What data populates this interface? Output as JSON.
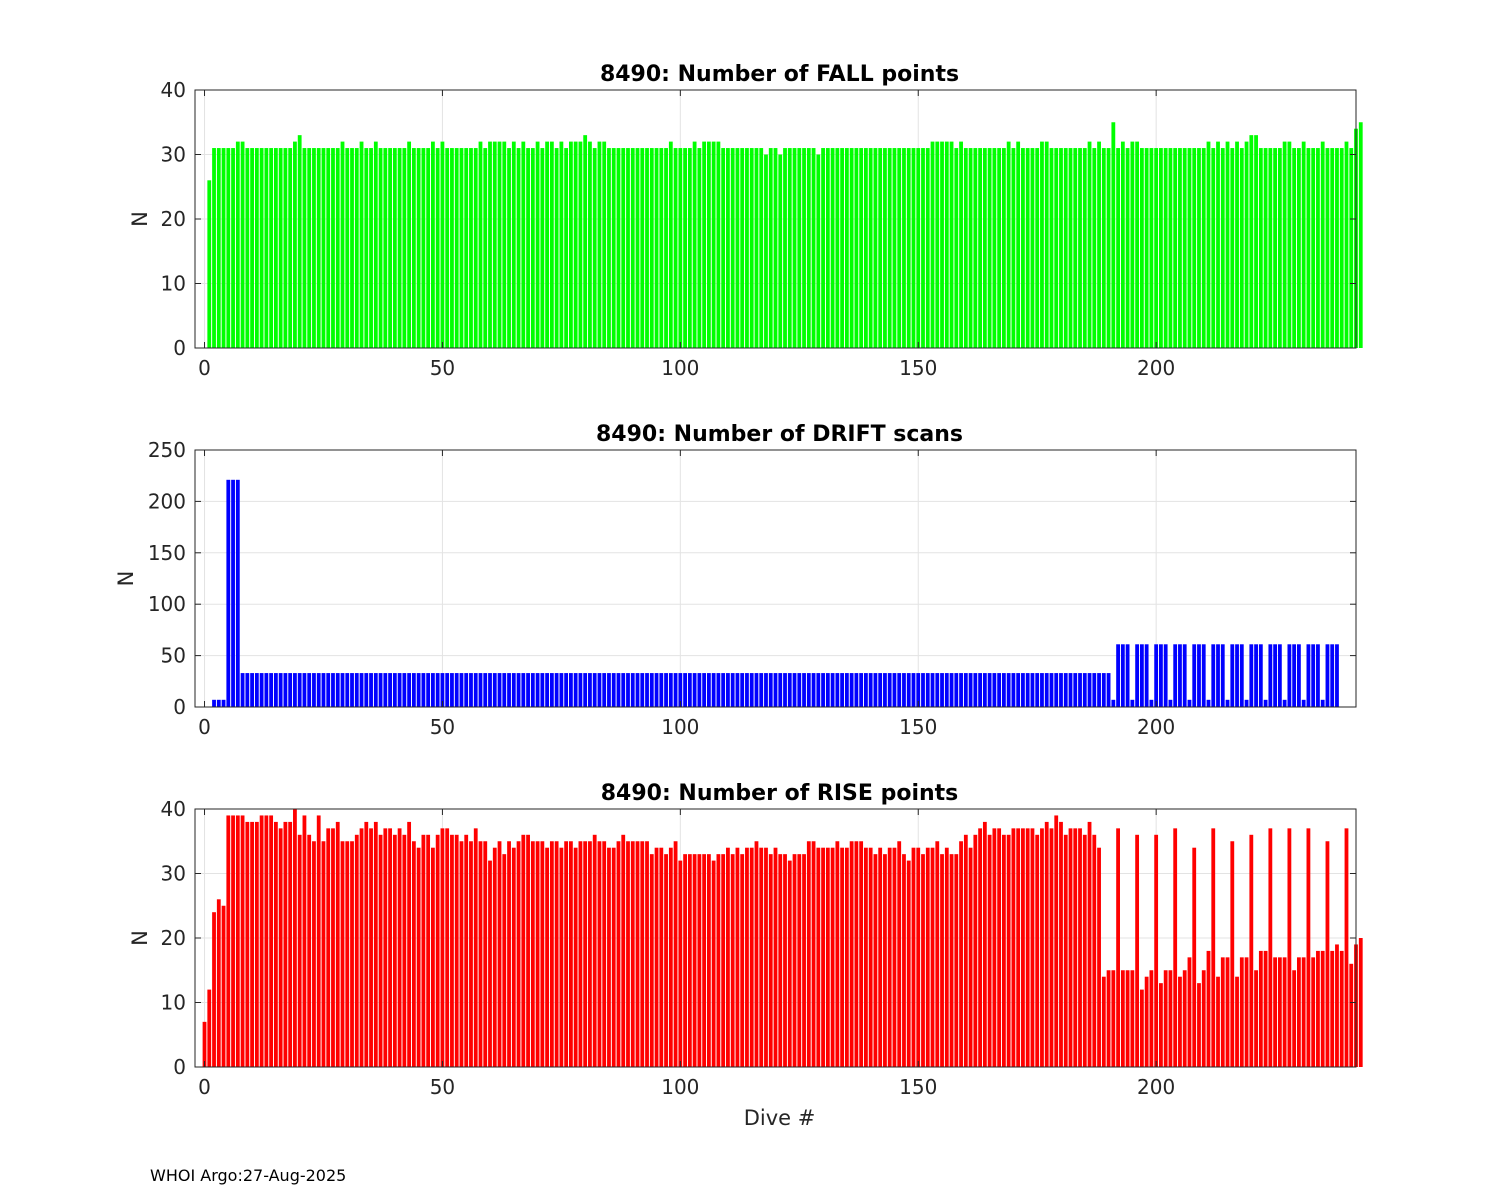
{
  "footer": {
    "source": "WHOI Argo:",
    "date": "27-Aug-2025"
  },
  "chart_data": [
    {
      "type": "bar",
      "title": "8490: Number of FALL points",
      "xlabel": "",
      "ylabel": "N",
      "color": "#00ff00",
      "xlim": [
        -2,
        242
      ],
      "ylim": [
        0,
        40
      ],
      "xticks": [
        0,
        50,
        100,
        150,
        200
      ],
      "yticks": [
        0,
        10,
        20,
        30,
        40
      ],
      "grid": true,
      "x_start": 0,
      "values": [
        0,
        26,
        31,
        31,
        31,
        31,
        31,
        32,
        32,
        31,
        31,
        31,
        31,
        31,
        31,
        31,
        31,
        31,
        31,
        32,
        33,
        31,
        31,
        31,
        31,
        31,
        31,
        31,
        31,
        32,
        31,
        31,
        31,
        32,
        31,
        31,
        32,
        31,
        31,
        31,
        31,
        31,
        31,
        32,
        31,
        31,
        31,
        31,
        32,
        31,
        32,
        31,
        31,
        31,
        31,
        31,
        31,
        31,
        32,
        31,
        32,
        32,
        32,
        32,
        31,
        32,
        31,
        32,
        31,
        31,
        32,
        31,
        32,
        32,
        31,
        32,
        31,
        32,
        32,
        32,
        33,
        32,
        31,
        32,
        32,
        31,
        31,
        31,
        31,
        31,
        31,
        31,
        31,
        31,
        31,
        31,
        31,
        31,
        32,
        31,
        31,
        31,
        31,
        32,
        31,
        32,
        32,
        32,
        32,
        31,
        31,
        31,
        31,
        31,
        31,
        31,
        31,
        31,
        30,
        31,
        31,
        30,
        31,
        31,
        31,
        31,
        31,
        31,
        31,
        30,
        31,
        31,
        31,
        31,
        31,
        31,
        31,
        31,
        31,
        31,
        31,
        31,
        31,
        31,
        31,
        31,
        31,
        31,
        31,
        31,
        31,
        31,
        31,
        32,
        32,
        32,
        32,
        32,
        31,
        32,
        31,
        31,
        31,
        31,
        31,
        31,
        31,
        31,
        31,
        32,
        31,
        32,
        31,
        31,
        31,
        31,
        32,
        32,
        31,
        31,
        31,
        31,
        31,
        31,
        31,
        31,
        32,
        31,
        32,
        31,
        31,
        35,
        31,
        32,
        31,
        32,
        32,
        31,
        31,
        31,
        31,
        31,
        31,
        31,
        31,
        31,
        31,
        31,
        31,
        31,
        31,
        32,
        31,
        32,
        31,
        32,
        31,
        32,
        31,
        32,
        33,
        33,
        31,
        31,
        31,
        31,
        31,
        32,
        32,
        31,
        31,
        32,
        31,
        31,
        31,
        32,
        31,
        31,
        31,
        31,
        32,
        31,
        34,
        35
      ]
    },
    {
      "type": "bar",
      "title": "8490: Number of DRIFT scans",
      "xlabel": "",
      "ylabel": "N",
      "color": "#0000ff",
      "xlim": [
        -2,
        242
      ],
      "ylim": [
        0,
        250
      ],
      "xticks": [
        0,
        50,
        100,
        150,
        200
      ],
      "yticks": [
        0,
        50,
        100,
        150,
        200,
        250
      ],
      "grid": true,
      "x_start": 0,
      "values": [
        0,
        0,
        7,
        7,
        7,
        221,
        221,
        221,
        33,
        33,
        33,
        33,
        33,
        33,
        33,
        33,
        33,
        33,
        33,
        33,
        33,
        33,
        33,
        33,
        33,
        33,
        33,
        33,
        33,
        33,
        33,
        33,
        33,
        33,
        33,
        33,
        33,
        33,
        33,
        33,
        33,
        33,
        33,
        33,
        33,
        33,
        33,
        33,
        33,
        33,
        33,
        33,
        33,
        33,
        33,
        33,
        33,
        33,
        33,
        33,
        33,
        33,
        33,
        33,
        33,
        33,
        33,
        33,
        33,
        33,
        33,
        33,
        33,
        33,
        33,
        33,
        33,
        33,
        33,
        33,
        33,
        33,
        33,
        33,
        33,
        33,
        33,
        33,
        33,
        33,
        33,
        33,
        33,
        33,
        33,
        33,
        33,
        33,
        33,
        33,
        33,
        33,
        33,
        33,
        33,
        33,
        33,
        33,
        33,
        33,
        33,
        33,
        33,
        33,
        33,
        33,
        33,
        33,
        33,
        33,
        33,
        33,
        33,
        33,
        33,
        33,
        33,
        33,
        33,
        33,
        33,
        33,
        33,
        33,
        33,
        33,
        33,
        33,
        33,
        33,
        33,
        33,
        33,
        33,
        33,
        33,
        33,
        33,
        33,
        33,
        33,
        33,
        33,
        33,
        33,
        33,
        33,
        33,
        33,
        33,
        33,
        33,
        33,
        33,
        33,
        33,
        33,
        33,
        33,
        33,
        33,
        33,
        33,
        33,
        33,
        33,
        33,
        33,
        33,
        33,
        33,
        33,
        33,
        33,
        33,
        33,
        33,
        33,
        33,
        33,
        33,
        7,
        61,
        61,
        61,
        7,
        61,
        61,
        61,
        7,
        61,
        61,
        61,
        7,
        61,
        61,
        61,
        7,
        61,
        61,
        61,
        7,
        61,
        61,
        61,
        7,
        61,
        61,
        61,
        7,
        61,
        61,
        61,
        7,
        61,
        61,
        61,
        7,
        61,
        61,
        61,
        7,
        61,
        61,
        61,
        7,
        61,
        61,
        61
      ]
    },
    {
      "type": "bar",
      "title": "8490: Number of RISE points",
      "xlabel": "Dive #",
      "ylabel": "N",
      "color": "#ff0000",
      "xlim": [
        -2,
        242
      ],
      "ylim": [
        0,
        40
      ],
      "xticks": [
        0,
        50,
        100,
        150,
        200
      ],
      "yticks": [
        0,
        10,
        20,
        30,
        40
      ],
      "grid": true,
      "x_start": 0,
      "values": [
        7,
        12,
        24,
        26,
        25,
        39,
        39,
        39,
        39,
        38,
        38,
        38,
        39,
        39,
        39,
        38,
        37,
        38,
        38,
        40,
        36,
        39,
        36,
        35,
        39,
        35,
        37,
        37,
        38,
        35,
        35,
        35,
        36,
        37,
        38,
        37,
        38,
        36,
        37,
        37,
        36,
        37,
        36,
        38,
        35,
        34,
        36,
        36,
        34,
        36,
        37,
        37,
        36,
        36,
        35,
        36,
        35,
        37,
        35,
        35,
        32,
        34,
        35,
        33,
        35,
        34,
        35,
        36,
        36,
        35,
        35,
        35,
        34,
        35,
        35,
        34,
        35,
        35,
        34,
        35,
        35,
        35,
        36,
        35,
        35,
        34,
        34,
        35,
        36,
        35,
        35,
        35,
        35,
        35,
        33,
        34,
        34,
        33,
        34,
        35,
        32,
        33,
        33,
        33,
        33,
        33,
        33,
        32,
        33,
        33,
        34,
        33,
        34,
        33,
        34,
        34,
        35,
        34,
        34,
        33,
        34,
        33,
        33,
        32,
        33,
        33,
        33,
        35,
        35,
        34,
        34,
        34,
        34,
        35,
        34,
        34,
        35,
        35,
        35,
        34,
        34,
        33,
        34,
        33,
        34,
        34,
        35,
        33,
        32,
        34,
        34,
        33,
        34,
        34,
        35,
        33,
        34,
        33,
        33,
        35,
        36,
        34,
        36,
        37,
        38,
        36,
        37,
        37,
        36,
        36,
        37,
        37,
        37,
        37,
        37,
        36,
        37,
        38,
        37,
        39,
        38,
        36,
        37,
        37,
        37,
        36,
        38,
        36,
        34,
        14,
        15,
        15,
        37,
        15,
        15,
        15,
        36,
        12,
        14,
        15,
        36,
        13,
        15,
        15,
        37,
        14,
        15,
        17,
        34,
        13,
        15,
        18,
        37,
        14,
        17,
        17,
        35,
        14,
        17,
        17,
        36,
        15,
        18,
        18,
        37,
        17,
        17,
        17,
        37,
        15,
        17,
        17,
        37,
        17,
        18,
        18,
        35,
        18,
        19,
        18,
        37,
        16,
        19,
        20
      ]
    }
  ]
}
